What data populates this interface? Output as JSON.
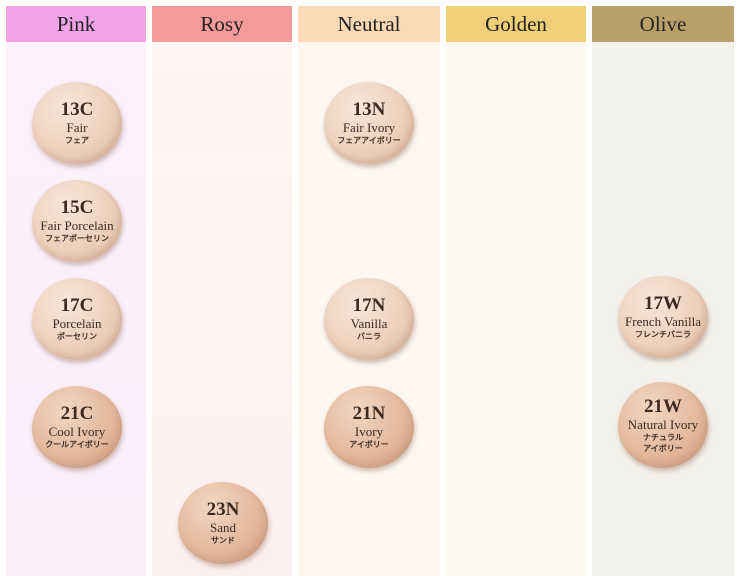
{
  "columns": [
    {
      "label": "Pink"
    },
    {
      "label": "Rosy"
    },
    {
      "label": "Neutral"
    },
    {
      "label": "Golden"
    },
    {
      "label": "Olive"
    }
  ],
  "shades": {
    "s13c": {
      "code": "13C",
      "name": "Fair",
      "jp": "フェア"
    },
    "s15c": {
      "code": "15C",
      "name": "Fair Porcelain",
      "jp": "フェアポーセリン"
    },
    "s17c": {
      "code": "17C",
      "name": "Porcelain",
      "jp": "ポーセリン"
    },
    "s21c": {
      "code": "21C",
      "name": "Cool Ivory",
      "jp": "クールアイボリー"
    },
    "s23n": {
      "code": "23N",
      "name": "Sand",
      "jp": "サンド"
    },
    "s13n": {
      "code": "13N",
      "name": "Fair Ivory",
      "jp": "フェアアイボリー"
    },
    "s17n": {
      "code": "17N",
      "name": "Vanilla",
      "jp": "バニラ"
    },
    "s21n": {
      "code": "21N",
      "name": "Ivory",
      "jp": "アイボリー"
    },
    "s17w": {
      "code": "17W",
      "name": "French Vanilla",
      "jp": "フレンチバニラ"
    },
    "s21w": {
      "code": "21W",
      "name": "Natural Ivory",
      "jp": "ナチュラル",
      "jp2": "アイボリー"
    }
  }
}
